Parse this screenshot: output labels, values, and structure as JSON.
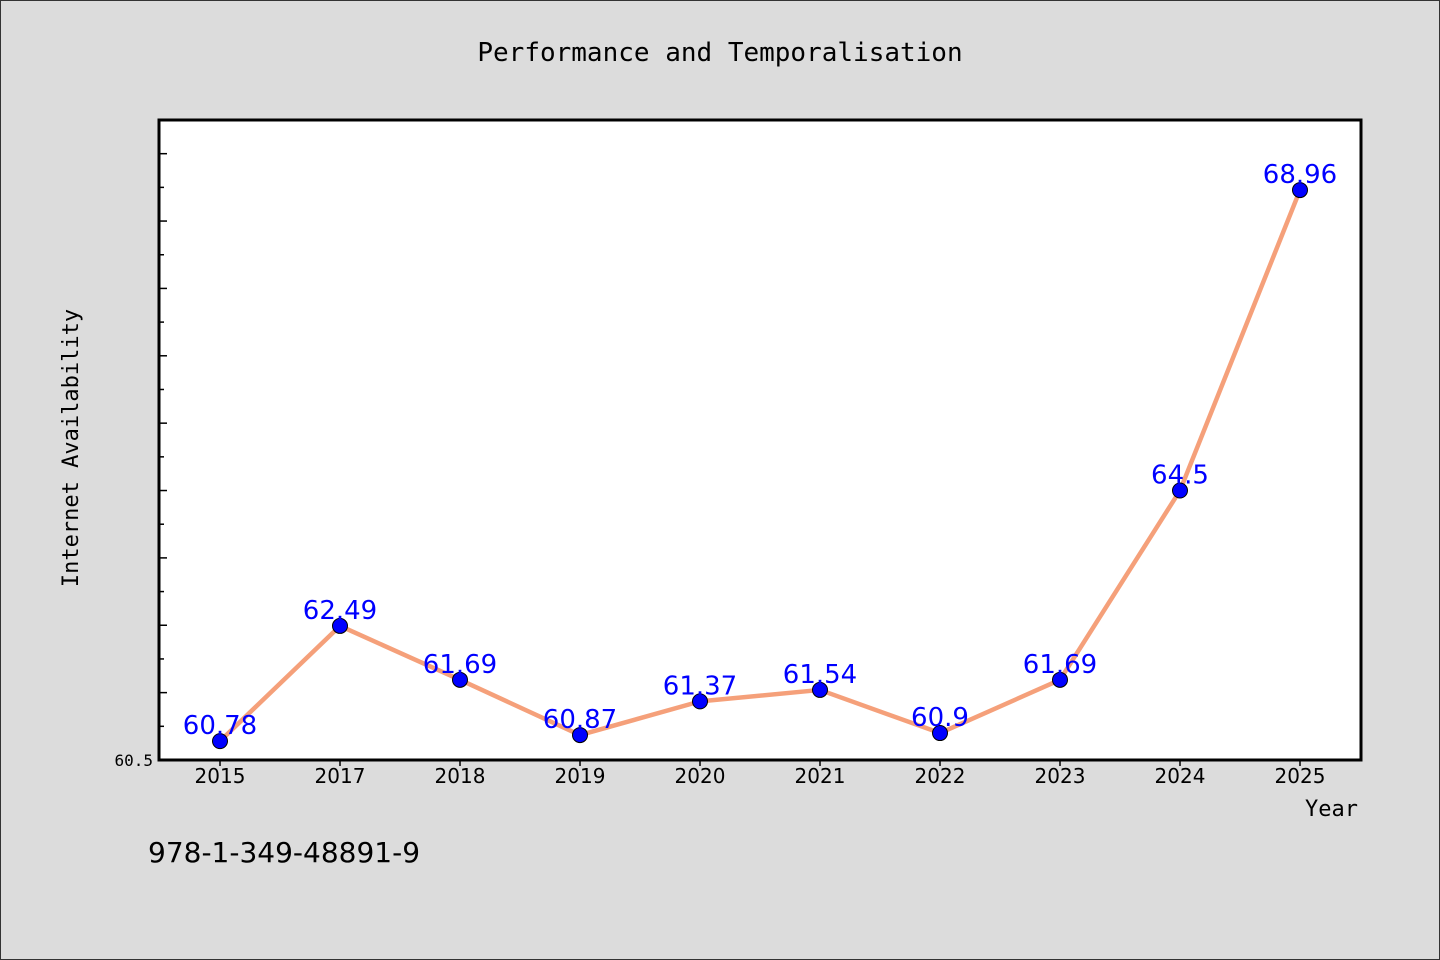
{
  "chart_data": {
    "type": "line",
    "title": "Performance and Temporalisation",
    "xlabel": "Year",
    "ylabel": "Internet Availability",
    "categories": [
      "2015",
      "2017",
      "2018",
      "2019",
      "2020",
      "2021",
      "2022",
      "2023",
      "2024",
      "2025"
    ],
    "series": [
      {
        "values": [
          60.78,
          62.49,
          61.69,
          60.87,
          61.37,
          61.54,
          60.9,
          61.69,
          64.5,
          68.96
        ]
      }
    ],
    "data_labels": [
      "60.78",
      "62.49",
      "61.69",
      "60.87",
      "61.37",
      "61.54",
      "60.9",
      "61.69",
      "64.5",
      "68.96"
    ],
    "y_min_label": "60.5",
    "ylim": [
      60.5,
      70.0
    ],
    "grid": false,
    "line_color": "#f5a07a",
    "marker_color": "#0000ff",
    "label_color": "#0000ff"
  },
  "footer": {
    "isbn": "978-1-349-48891-9"
  }
}
